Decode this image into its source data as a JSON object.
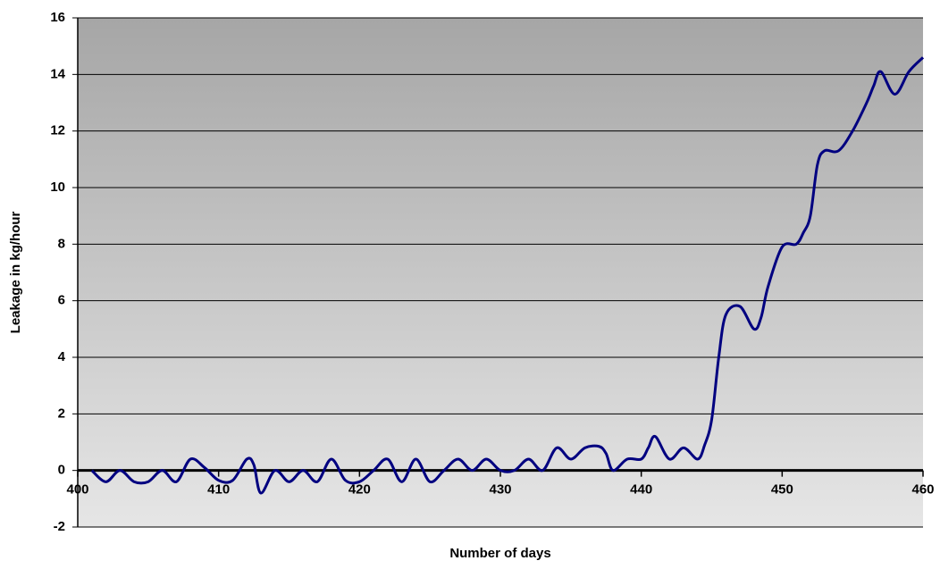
{
  "chart_data": {
    "type": "line",
    "xlabel": "Number of days",
    "ylabel": "Leakage in kg/hour",
    "x": [
      401,
      402,
      403,
      404,
      405,
      406,
      407,
      408,
      409,
      410,
      411,
      412,
      412.5,
      413,
      414,
      415,
      416,
      417,
      418,
      419,
      420,
      421,
      422,
      423,
      424,
      425,
      426,
      427,
      428,
      429,
      430,
      431,
      432,
      433,
      434,
      435,
      436,
      437,
      437.5,
      438,
      439,
      440,
      440.5,
      441,
      442,
      443,
      444,
      444.5,
      445,
      445.5,
      446,
      447,
      448,
      448.5,
      449,
      450,
      451,
      451.5,
      452,
      452.5,
      453,
      454,
      455,
      456,
      456.5,
      457,
      458,
      459,
      460
    ],
    "series": [
      {
        "name": "Leakage",
        "color": "#000080",
        "values": [
          0,
          -0.4,
          0,
          -0.4,
          -0.4,
          0,
          -0.4,
          0.4,
          0.1,
          -0.35,
          -0.35,
          0.4,
          0.2,
          -0.8,
          0,
          -0.4,
          0,
          -0.4,
          0.4,
          -0.35,
          -0.4,
          0,
          0.4,
          -0.4,
          0.4,
          -0.4,
          0,
          0.4,
          0,
          0.4,
          0,
          0,
          0.4,
          0,
          0.8,
          0.4,
          0.8,
          0.85,
          0.6,
          0,
          0.4,
          0.4,
          0.8,
          1.2,
          0.4,
          0.8,
          0.4,
          0.9,
          1.8,
          4,
          5.5,
          5.8,
          5.0,
          5.4,
          6.5,
          7.9,
          8.0,
          8.4,
          9.0,
          10.8,
          11.3,
          11.3,
          12.0,
          13.0,
          13.6,
          14.1,
          13.3,
          14.1,
          14.6
        ]
      }
    ],
    "xlim": [
      400,
      460
    ],
    "xticks": [
      400,
      410,
      420,
      430,
      440,
      450,
      460
    ],
    "ylim": [
      -2,
      16
    ],
    "yticks": [
      -2,
      0,
      2,
      4,
      6,
      8,
      10,
      12,
      14,
      16
    ],
    "grid": true
  }
}
